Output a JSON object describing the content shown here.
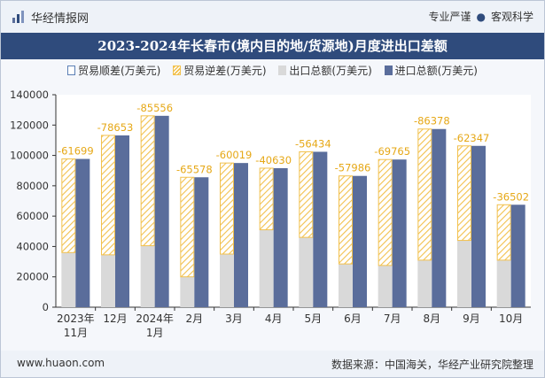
{
  "header": {
    "brand": "华经情报网",
    "tagline_left": "专业严谨",
    "tagline_right": "客观科学",
    "title": "2023-2024年长春市(境内目的地/货源地)月度进出口差额"
  },
  "footer": {
    "site": "www.huaon.com",
    "source": "数据来源：中国海关，华经产业研究院整理"
  },
  "colors": {
    "title_bg": "#2f4b7c",
    "export": "#d9d9d9",
    "import": "#5a6d9b",
    "deficit": "#f2c14e",
    "deficit_label": "#e6a817"
  },
  "chart_data": {
    "type": "bar",
    "categories": [
      "2023年\n11月",
      "12月",
      "2024年\n1月",
      "2月",
      "3月",
      "4月",
      "5月",
      "6月",
      "7月",
      "8月",
      "9月",
      "10月"
    ],
    "series": [
      {
        "name": "贸易顺差(万美元)",
        "values": [
          0,
          0,
          0,
          0,
          0,
          0,
          0,
          0,
          0,
          0,
          0,
          0
        ]
      },
      {
        "name": "贸易逆差(万美元)",
        "values": [
          -61699,
          -78653,
          -85556,
          -65578,
          -60019,
          -40630,
          -56434,
          -57986,
          -69765,
          -86378,
          -62347,
          -36502
        ]
      },
      {
        "name": "出口总额(万美元)",
        "values": [
          36000,
          34500,
          40500,
          20000,
          35000,
          51000,
          46000,
          28500,
          27500,
          31000,
          44000,
          31000
        ]
      },
      {
        "name": "进口总额(万美元)",
        "values": [
          97700,
          113200,
          126100,
          85600,
          95000,
          91600,
          102400,
          86500,
          97300,
          117400,
          106300,
          67500
        ]
      }
    ],
    "deficit_labels": [
      "-61699",
      "-78653",
      "-85556",
      "-65578",
      "-60019",
      "-40630",
      "-56434",
      "-57986",
      "-69765",
      "-86378",
      "-62347",
      "-36502"
    ],
    "ylim": [
      0,
      140000
    ],
    "yticks": [
      0,
      20000,
      40000,
      60000,
      80000,
      100000,
      120000,
      140000
    ],
    "legend_position": "top",
    "grid": false
  }
}
